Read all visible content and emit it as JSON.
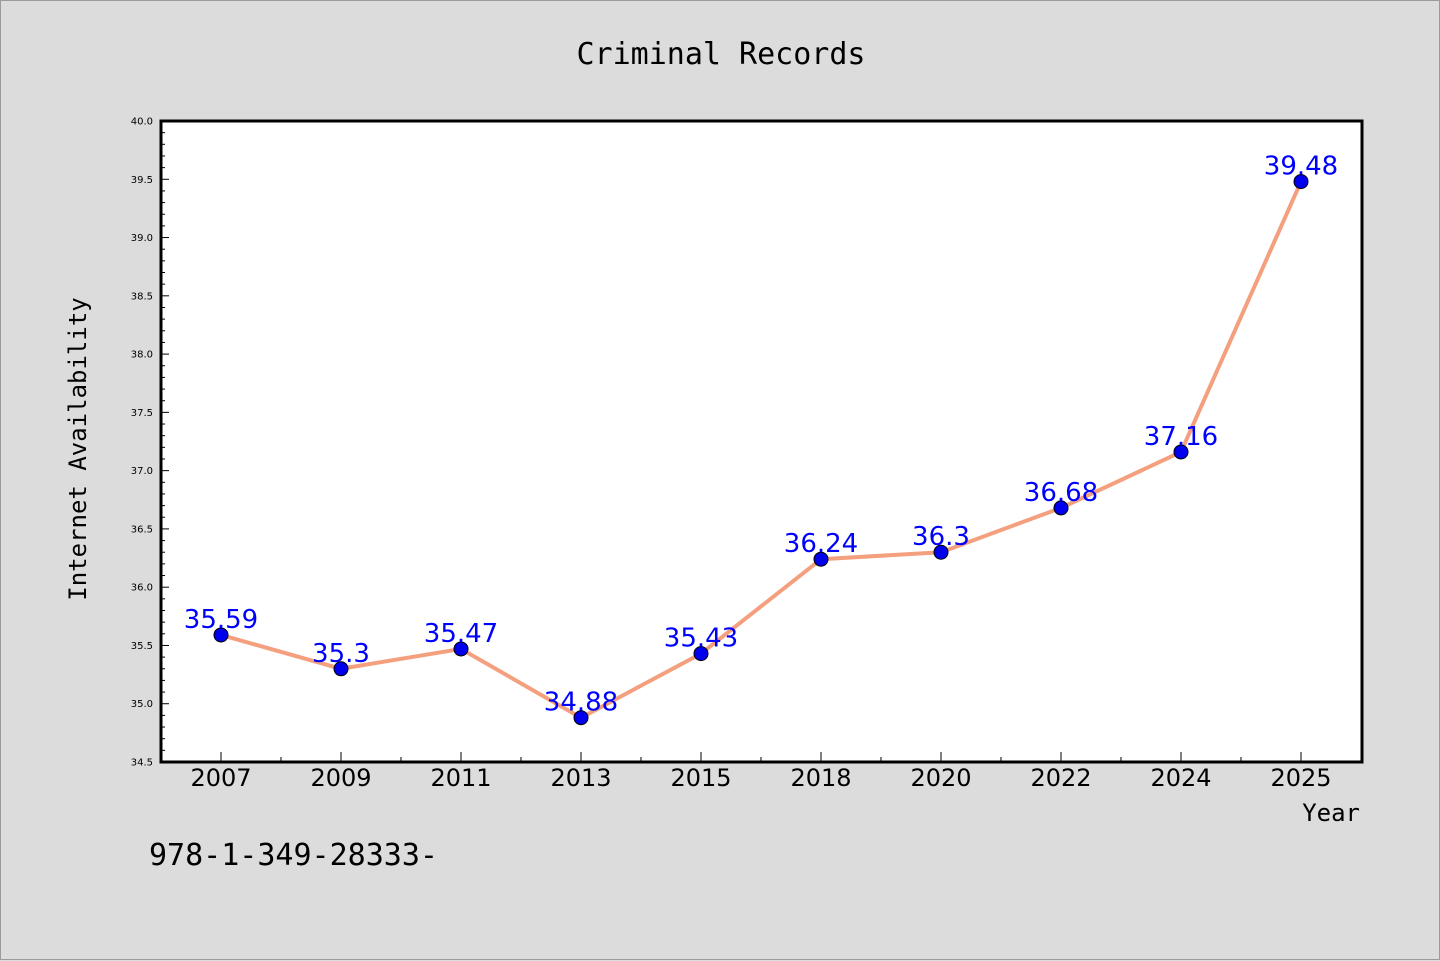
{
  "chart_data": {
    "type": "line",
    "title": "Criminal Records",
    "xlabel": "Year",
    "ylabel": "Internet Availability",
    "categories": [
      "2007",
      "2009",
      "2011",
      "2013",
      "2015",
      "2018",
      "2020",
      "2022",
      "2024",
      "2025"
    ],
    "series": [
      {
        "values": [
          35.59,
          35.3,
          35.47,
          34.88,
          35.43,
          36.24,
          36.3,
          36.68,
          37.16,
          39.48
        ],
        "data_labels": [
          "35.59",
          "35.3",
          "35.47",
          "34.88",
          "35.43",
          "36.24",
          "36.3",
          "36.68",
          "37.16",
          "39.48"
        ]
      }
    ],
    "ylim": [
      34.5,
      40.0
    ],
    "yticks": [
      "34.5",
      "35.0",
      "35.5",
      "36.0",
      "36.5",
      "37.0",
      "37.5",
      "38.0",
      "38.5",
      "39.0",
      "39.5",
      "40.0"
    ],
    "grid": false,
    "line_color": "#f4a07f",
    "marker_color": "#0000ee",
    "label_color": "#0000ff"
  },
  "footer_text": "978-1-349-28333-"
}
